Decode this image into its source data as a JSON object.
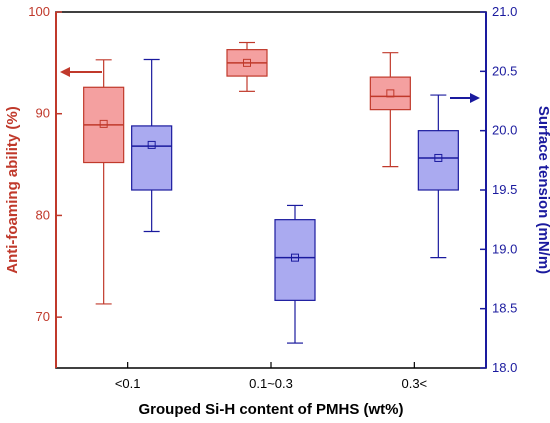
{
  "chart_data": {
    "type": "box",
    "categories": [
      "<0.1",
      "0.1~0.3",
      "0.3<"
    ],
    "xlabel": "Grouped Si-H content of PMHS (wt%)",
    "left_axis": {
      "label": "Anti-foaming ability (%)",
      "range": [
        65,
        100
      ],
      "ticks": [
        70,
        80,
        90,
        100
      ],
      "color": "#c0392b"
    },
    "right_axis": {
      "label": "Surface tension (mN/m)",
      "range": [
        18.0,
        21.0
      ],
      "ticks": [
        "18.0",
        "18.5",
        "19.0",
        "19.5",
        "20.0",
        "20.5",
        "21.0"
      ],
      "color": "#1a1a9e"
    },
    "series": [
      {
        "name": "Anti-foaming ability",
        "axis": "left",
        "fill": "#f4a0a0",
        "stroke": "#c0392b",
        "boxes": [
          {
            "min": 71.3,
            "q1": 85.2,
            "median": 88.9,
            "mean": 89.0,
            "q3": 92.6,
            "max": 95.3
          },
          {
            "min": 92.2,
            "q1": 93.7,
            "median": 95.0,
            "mean": 95.0,
            "q3": 96.3,
            "max": 97.0
          },
          {
            "min": 84.8,
            "q1": 90.4,
            "median": 91.7,
            "mean": 92.0,
            "q3": 93.6,
            "max": 96.0
          }
        ],
        "indicator": "left-arrow"
      },
      {
        "name": "Surface tension",
        "axis": "right",
        "fill": "#aaaaf0",
        "stroke": "#1a1a9e",
        "boxes": [
          {
            "min": 19.15,
            "q1": 19.5,
            "median": 19.87,
            "mean": 19.88,
            "q3": 20.04,
            "max": 20.6
          },
          {
            "min": 18.21,
            "q1": 18.57,
            "median": 18.93,
            "mean": 18.93,
            "q3": 19.25,
            "max": 19.37
          },
          {
            "min": 18.93,
            "q1": 19.5,
            "median": 19.77,
            "mean": 19.77,
            "q3": 20.0,
            "max": 20.3
          }
        ],
        "indicator": "right-arrow"
      }
    ]
  }
}
